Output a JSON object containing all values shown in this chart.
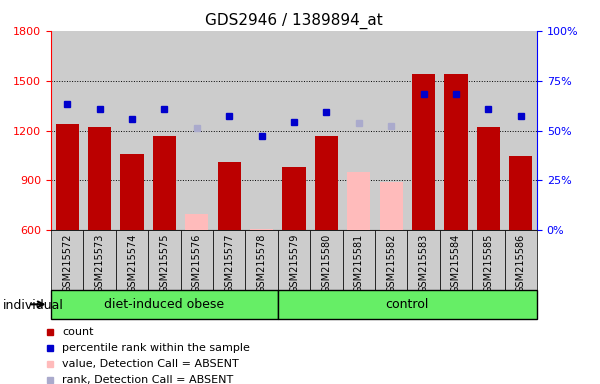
{
  "title": "GDS2946 / 1389894_at",
  "samples": [
    "GSM215572",
    "GSM215573",
    "GSM215574",
    "GSM215575",
    "GSM215576",
    "GSM215577",
    "GSM215578",
    "GSM215579",
    "GSM215580",
    "GSM215581",
    "GSM215582",
    "GSM215583",
    "GSM215584",
    "GSM215585",
    "GSM215586"
  ],
  "n_obese": 7,
  "n_control": 8,
  "bar_values": [
    1240,
    1220,
    1060,
    1170,
    null,
    1010,
    null,
    980,
    1170,
    null,
    null,
    1540,
    1540,
    1220,
    1050
  ],
  "bar_absent_values": [
    null,
    null,
    null,
    null,
    700,
    null,
    610,
    null,
    null,
    950,
    890,
    null,
    null,
    null,
    null
  ],
  "rank_values": [
    1360,
    1330,
    1270,
    1330,
    null,
    1290,
    1165,
    1250,
    1310,
    null,
    null,
    1420,
    1420,
    1330,
    1290
  ],
  "rank_absent_values": [
    null,
    null,
    null,
    null,
    1215,
    null,
    null,
    null,
    null,
    1245,
    1225,
    null,
    null,
    null,
    null
  ],
  "ylim_left": [
    600,
    1800
  ],
  "ylim_right": [
    0,
    100
  ],
  "yticks_left": [
    600,
    900,
    1200,
    1500,
    1800
  ],
  "yticks_right": [
    0,
    25,
    50,
    75,
    100
  ],
  "bar_color": "#bb0000",
  "bar_absent_color": "#ffbbbb",
  "rank_color": "#0000cc",
  "rank_absent_color": "#aaaacc",
  "col_bg_color": "#cccccc",
  "group_color": "#66ee66",
  "group_border": "#000000",
  "dotted_line_values": [
    900,
    1200,
    1500
  ],
  "legend_items": [
    "count",
    "percentile rank within the sample",
    "value, Detection Call = ABSENT",
    "rank, Detection Call = ABSENT"
  ],
  "legend_colors": [
    "#bb0000",
    "#0000cc",
    "#ffbbbb",
    "#aaaacc"
  ],
  "title_fontsize": 11,
  "tick_fontsize": 8,
  "label_fontsize": 7,
  "group_fontsize": 9,
  "legend_fontsize": 8
}
